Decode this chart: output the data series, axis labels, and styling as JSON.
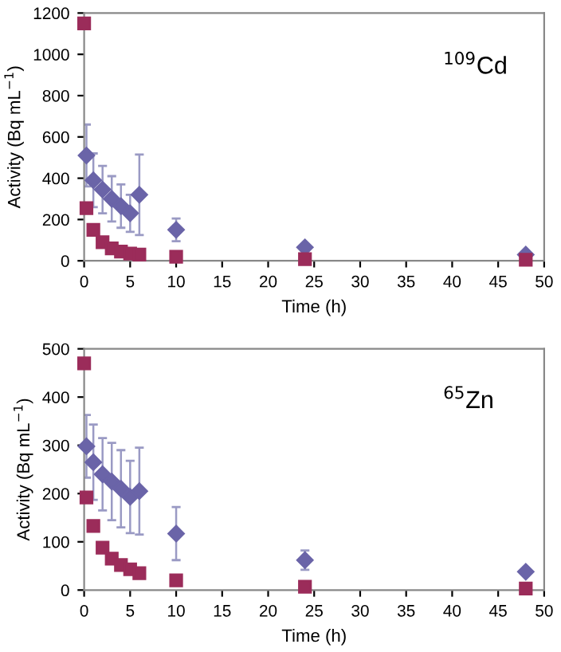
{
  "chart_data": [
    {
      "type": "scatter",
      "xlabel": "Time (h)",
      "ylabel": "Activity (Bq mL$^{−1}$)",
      "annotations": [
        "$^{109}$Cd"
      ],
      "xlim": [
        0,
        50
      ],
      "xticks": [
        0,
        5,
        10,
        15,
        20,
        25,
        30,
        35,
        40,
        45,
        50
      ],
      "ylim": [
        0,
        1200
      ],
      "yticks": [
        0,
        200,
        400,
        600,
        800,
        1000,
        1200
      ],
      "series": [
        {
          "color": "#6a64a8",
          "marker": "diamond",
          "x": [
            0.25,
            1,
            2,
            3,
            4,
            5,
            6,
            10,
            24,
            48
          ],
          "values": [
            510,
            390,
            345,
            300,
            265,
            230,
            320,
            150,
            65,
            30
          ],
          "errors": [
            150,
            130,
            115,
            110,
            105,
            90,
            195,
            55,
            null,
            null
          ]
        },
        {
          "color": "#9b2c5a",
          "marker": "square",
          "x": [
            0,
            0.25,
            1,
            2,
            3,
            4,
            5,
            6,
            10,
            24,
            48
          ],
          "values": [
            1150,
            255,
            150,
            90,
            60,
            45,
            35,
            30,
            20,
            8,
            5
          ]
        }
      ]
    },
    {
      "type": "scatter",
      "xlabel": "Time (h)",
      "ylabel": "Activity (Bq mL$^{−1}$)",
      "annotations": [
        "$^{65}$Zn"
      ],
      "xlim": [
        0,
        50
      ],
      "xticks": [
        0,
        5,
        10,
        15,
        20,
        25,
        30,
        35,
        40,
        45,
        50
      ],
      "ylim": [
        0,
        500
      ],
      "yticks": [
        0,
        100,
        200,
        300,
        400,
        500
      ],
      "series": [
        {
          "color": "#6a64a8",
          "marker": "diamond",
          "x": [
            0.25,
            1,
            2,
            3,
            4,
            5,
            6,
            10,
            24,
            48
          ],
          "values": [
            298,
            265,
            240,
            225,
            210,
            193,
            205,
            117,
            62,
            38
          ],
          "errors": [
            65,
            78,
            75,
            80,
            80,
            75,
            90,
            55,
            20,
            null
          ]
        },
        {
          "color": "#9b2c5a",
          "marker": "square",
          "x": [
            0,
            0.25,
            1,
            2,
            3,
            4,
            5,
            6,
            10,
            24,
            48
          ],
          "values": [
            470,
            192,
            133,
            88,
            65,
            52,
            43,
            35,
            20,
            7,
            3
          ]
        }
      ]
    }
  ]
}
